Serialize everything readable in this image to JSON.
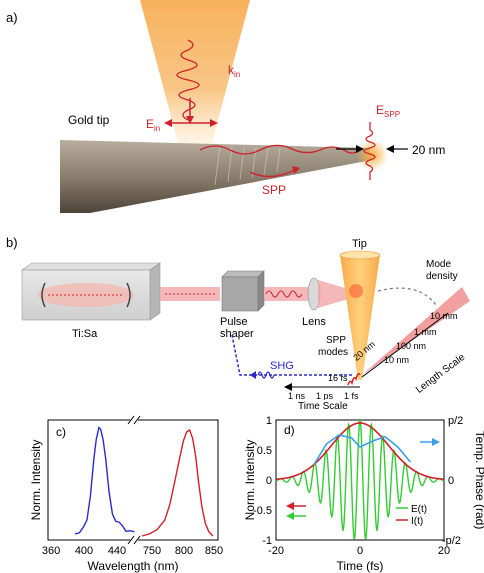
{
  "panel_a": {
    "label": "a)",
    "gold_tip": "Gold tip",
    "k_in": "k",
    "k_in_sub": "in",
    "e_in": "E",
    "e_in_sub": "in",
    "e_spp": "E",
    "e_spp_sub": "SPP",
    "spp": "SPP",
    "size": "20 nm"
  },
  "panel_b": {
    "label": "b)",
    "tisa": "Ti:Sa",
    "pulse_shaper": "Pulse\nshaper",
    "pulse_shaper_1": "Pulse",
    "pulse_shaper_2": "shaper",
    "lens": "Lens",
    "tip": "Tip",
    "mode_density_1": "Mode",
    "mode_density_2": "density",
    "spp_modes_1": "SPP",
    "spp_modes_2": "modes",
    "shg": "SHG",
    "time_scale": "Time Scale",
    "length_scale": "Length Scale",
    "time_ticks": [
      "1 ns",
      "1 ps",
      "1 fs"
    ],
    "t16": "16 fs",
    "length_ticks": [
      "10 mm",
      "1 mm",
      "100 nm",
      "10 nm"
    ],
    "l20": "20 nm"
  },
  "panel_c": {
    "label": "c)",
    "ylabel": "Norm. Intensity",
    "xlabel": "Wavelength (nm)",
    "xticks": [
      "360",
      "400",
      "440",
      "750",
      "800",
      "850"
    ]
  },
  "panel_d": {
    "label": "d)",
    "ylabel_left": "Norm. Intensity",
    "ylabel_right": "Temp. Phase (rad)",
    "xlabel": "Time (fs)",
    "xticks": [
      "-20",
      "0",
      "20"
    ],
    "yticks_left": [
      "1",
      "0.5",
      "0",
      "-0.5",
      "-1"
    ],
    "yticks_right": [
      "p/2",
      "0",
      "-p/2"
    ],
    "legend_e": "E(t)",
    "legend_i": "I(t)"
  },
  "chart_data": [
    {
      "type": "line",
      "panel": "c",
      "xlabel": "Wavelength (nm)",
      "ylabel": "Norm. Intensity",
      "series": [
        {
          "color": "#2a2ad0",
          "x": [
            390,
            395,
            400,
            404,
            408,
            412,
            415,
            418,
            420,
            423,
            426,
            430,
            434,
            438,
            442,
            446,
            450,
            455,
            460
          ],
          "y": [
            0.02,
            0.03,
            0.06,
            0.15,
            0.4,
            0.75,
            0.92,
            1.0,
            0.98,
            0.9,
            0.75,
            0.45,
            0.22,
            0.12,
            0.1,
            0.08,
            0.06,
            0.05,
            0.04
          ]
        },
        {
          "color": "#d0202a",
          "x": [
            730,
            745,
            760,
            775,
            785,
            795,
            805,
            812,
            818,
            824,
            830,
            836,
            842,
            848,
            855,
            862,
            870
          ],
          "y": [
            0.0,
            0.02,
            0.06,
            0.15,
            0.3,
            0.52,
            0.75,
            0.9,
            0.98,
            1.0,
            0.92,
            0.75,
            0.5,
            0.28,
            0.12,
            0.04,
            0.0
          ]
        }
      ]
    },
    {
      "type": "line",
      "panel": "d",
      "xlabel": "Time (fs)",
      "ylabel": "Norm. Intensity",
      "y2label": "Temp. Phase (rad)",
      "xlim": [
        -20,
        20
      ],
      "ylim": [
        -1,
        1
      ],
      "legend": "bottom-right",
      "series": [
        {
          "name": "E(t)",
          "color": "#33cc33",
          "envelope_fwhm_fs": 16,
          "period_fs": 2.7
        },
        {
          "name": "I(t)",
          "color": "#d0202a",
          "peak": 0.95,
          "fwhm_fs": 16
        },
        {
          "color": "#3aa0e8",
          "x": [
            -11,
            -8,
            -5,
            -2,
            0,
            3,
            6,
            9,
            12
          ],
          "y": [
            0.25,
            0.6,
            0.75,
            0.7,
            0.55,
            0.65,
            0.72,
            0.55,
            0.3
          ]
        }
      ]
    }
  ]
}
